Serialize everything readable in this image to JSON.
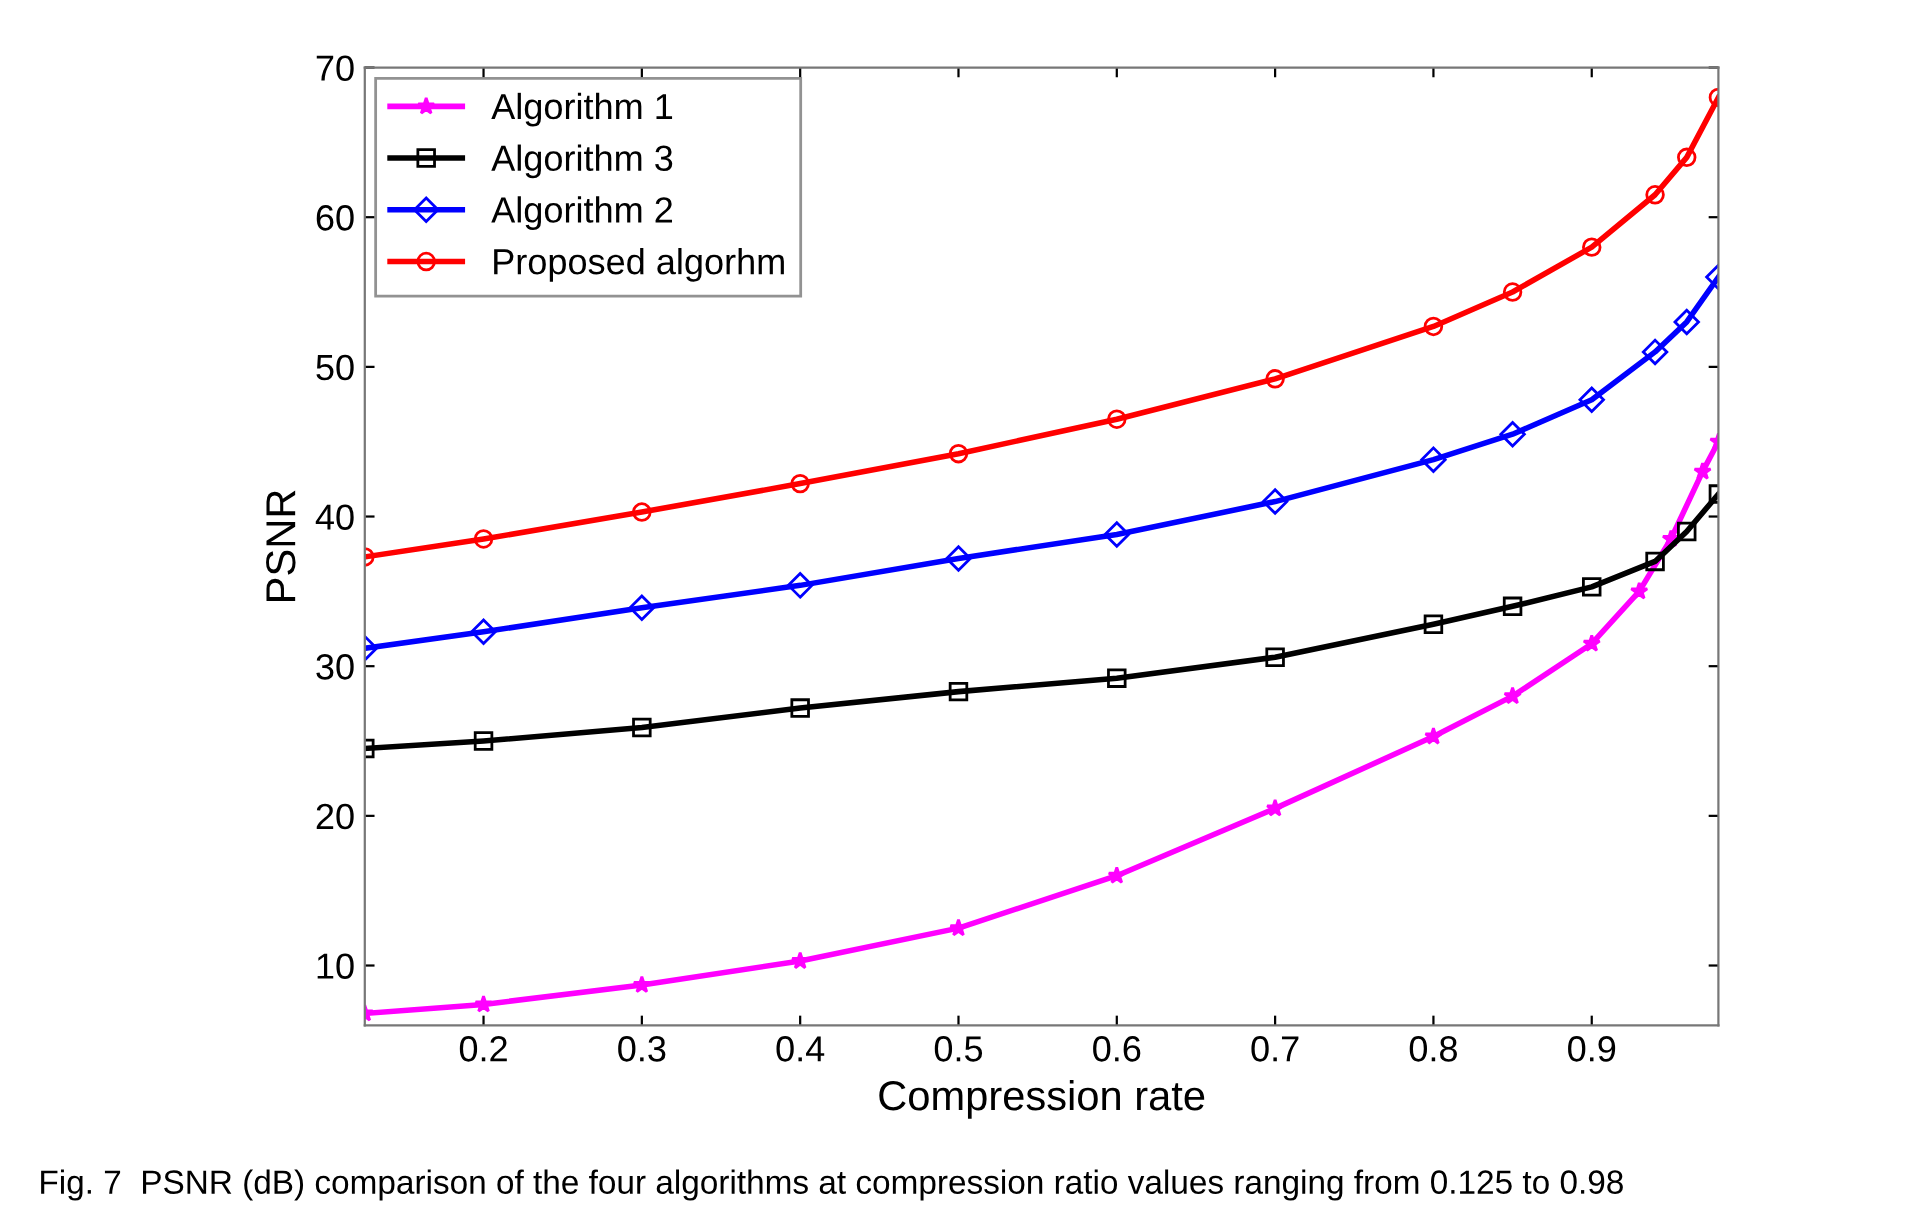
{
  "chart_data": {
    "type": "line",
    "xlabel": "Compression rate",
    "ylabel": "PSNR",
    "xlim": [
      0.125,
      0.98
    ],
    "ylim": [
      6,
      70
    ],
    "xticks": [
      0.2,
      0.3,
      0.4,
      0.5,
      0.6,
      0.7,
      0.8,
      0.9
    ],
    "yticks": [
      10,
      20,
      30,
      40,
      50,
      60,
      70
    ],
    "grid": false,
    "legend": "top left",
    "line_style": "solid",
    "annotations": [
      "Fig. 7  PSNR (dB) comparison of the four algorithms at compression ratio values ranging from 0.125 to 0.98"
    ],
    "series": [
      {
        "name": "Algorithm 1",
        "color": "#ff00ff",
        "marker": "star",
        "x": [
          0.125,
          0.2,
          0.3,
          0.4,
          0.5,
          0.6,
          0.7,
          0.8,
          0.85,
          0.9,
          0.93,
          0.95,
          0.97,
          0.98
        ],
        "values": [
          6.8,
          7.4,
          8.7,
          10.3,
          12.5,
          16,
          20.5,
          25.3,
          28,
          31.5,
          35,
          38.5,
          43,
          45
        ]
      },
      {
        "name": "Algorithm 3",
        "color": "#000000",
        "marker": "square",
        "x": [
          0.125,
          0.2,
          0.3,
          0.4,
          0.5,
          0.6,
          0.7,
          0.8,
          0.85,
          0.9,
          0.94,
          0.96,
          0.98
        ],
        "values": [
          24.5,
          25,
          25.9,
          27.2,
          28.3,
          29.2,
          30.6,
          32.8,
          34,
          35.3,
          37,
          39,
          41.5
        ]
      },
      {
        "name": "Algorithm 2",
        "color": "#0000ff",
        "marker": "diamond",
        "x": [
          0.125,
          0.2,
          0.3,
          0.4,
          0.5,
          0.6,
          0.7,
          0.8,
          0.85,
          0.9,
          0.94,
          0.96,
          0.98
        ],
        "values": [
          31.2,
          32.3,
          33.9,
          35.4,
          37.2,
          38.8,
          41,
          43.8,
          45.5,
          47.8,
          51,
          53,
          56
        ]
      },
      {
        "name": "Proposed algorhm",
        "color": "#ff0000",
        "marker": "circle",
        "x": [
          0.125,
          0.2,
          0.3,
          0.4,
          0.5,
          0.6,
          0.7,
          0.8,
          0.85,
          0.9,
          0.94,
          0.96,
          0.98
        ],
        "values": [
          37.3,
          38.5,
          40.3,
          42.2,
          44.2,
          46.5,
          49.2,
          52.7,
          55,
          58,
          61.5,
          64,
          68
        ]
      }
    ]
  }
}
